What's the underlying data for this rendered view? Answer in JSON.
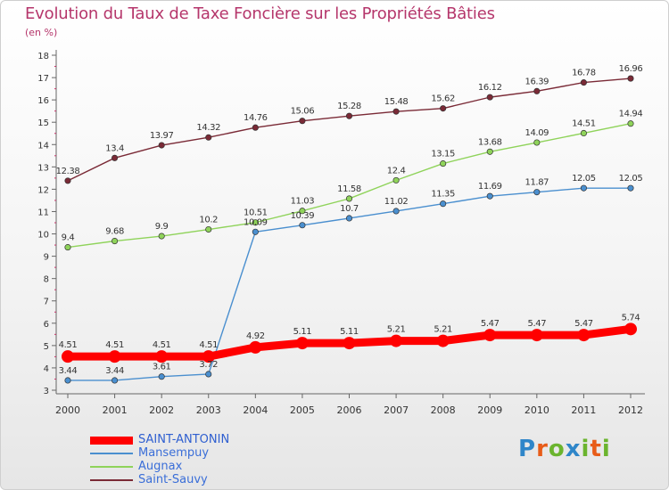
{
  "header": {
    "title": "Evolution du Taux de Taxe Foncière sur les Propriétés Bâties",
    "unit": "(en %)"
  },
  "logo": {
    "text": "Proxiti"
  },
  "chart_data": {
    "type": "line",
    "title": "Evolution du Taux de Taxe Foncière sur les Propriétés Bâties",
    "ylabel": "(en %)",
    "xlabel": "",
    "x": [
      "2000",
      "2001",
      "2002",
      "2003",
      "2004",
      "2005",
      "2006",
      "2007",
      "2008",
      "2009",
      "2010",
      "2011",
      "2012"
    ],
    "ylim": [
      3,
      18
    ],
    "yticks": [
      3,
      4,
      5,
      6,
      7,
      8,
      9,
      10,
      11,
      12,
      13,
      14,
      15,
      16,
      17,
      18
    ],
    "grid": false,
    "legend_position": "bottom-left",
    "series": [
      {
        "name": "SAINT-ANTONIN",
        "color": "#ff0000",
        "values": [
          4.51,
          4.51,
          4.51,
          4.51,
          4.92,
          5.11,
          5.11,
          5.21,
          5.21,
          5.47,
          5.47,
          5.47,
          5.74
        ],
        "labels": [
          "4.51",
          "4.51",
          "4.51",
          "4.51",
          "4.92",
          "5.11",
          "5.11",
          "5.21",
          "5.21",
          "5.47",
          "5.47",
          "5.47",
          "5.74"
        ]
      },
      {
        "name": "Mansempuy",
        "color": "#4a8fcf",
        "values": [
          3.44,
          3.44,
          3.61,
          3.72,
          10.09,
          10.39,
          10.7,
          11.02,
          11.35,
          11.69,
          11.87,
          12.05,
          12.05
        ],
        "labels": [
          "3.44",
          "3.44",
          "3.61",
          "3.72",
          "10.09",
          "10.39",
          "10.7",
          "11.02",
          "11.35",
          "11.69",
          "11.87",
          "12.05",
          "12.05"
        ]
      },
      {
        "name": "Augnax",
        "color": "#8fd35a",
        "values": [
          9.4,
          9.68,
          9.9,
          10.2,
          10.51,
          11.03,
          11.58,
          12.4,
          13.15,
          13.68,
          14.09,
          14.51,
          14.94
        ],
        "labels": [
          "9.4",
          "9.68",
          "9.9",
          "10.2",
          "10.51",
          "11.03",
          "11.58",
          "12.4",
          "13.15",
          "13.68",
          "14.09",
          "14.51",
          "14.94"
        ]
      },
      {
        "name": "Saint-Sauvy",
        "color": "#7a2a36",
        "values": [
          12.38,
          13.4,
          13.97,
          14.32,
          14.76,
          15.06,
          15.28,
          15.48,
          15.62,
          16.12,
          16.39,
          16.78,
          16.96
        ],
        "labels": [
          "12.38",
          "13.4",
          "13.97",
          "14.32",
          "14.76",
          "15.06",
          "15.28",
          "15.48",
          "15.62",
          "16.12",
          "16.39",
          "16.78",
          "16.96"
        ]
      }
    ]
  }
}
